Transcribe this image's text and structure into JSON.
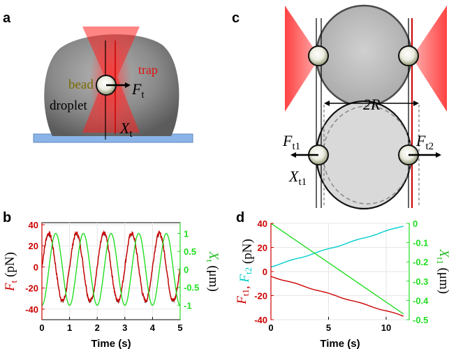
{
  "panel_labels": {
    "a": "a",
    "b": "b",
    "c": "c",
    "d": "d"
  },
  "panel_a": {
    "bead": "bead",
    "trap": "trap",
    "droplet": "droplet",
    "force_sym": "F",
    "force_sub": "t",
    "pos_sym": "X",
    "pos_sub": "t"
  },
  "panel_c": {
    "radius": "2R",
    "f1_sym": "F",
    "f1_sub": "t1",
    "f2_sym": "F",
    "f2_sub": "t2",
    "x_sym": "X",
    "x_sub": "t1"
  },
  "colors": {
    "force": "#cc0000",
    "position": "#22dd22",
    "force2": "#00cccc",
    "trap": "#ff2020",
    "substrate": "#8ab4e8"
  },
  "chart_data": [
    {
      "type": "line",
      "panel": "b",
      "xlabel": "Time (s)",
      "ylabel_left": {
        "sym": "F",
        "sub": "t",
        "unit": " (pN)"
      },
      "ylabel_right": {
        "sym": "X",
        "sub": "t",
        "unit": " (μm)"
      },
      "xlim": [
        0,
        5
      ],
      "ylim_left": [
        -50,
        42
      ],
      "ylim_right": [
        -1.4,
        1.3
      ],
      "xticks": [
        0,
        1,
        2,
        3,
        4,
        5
      ],
      "yticks_left": [
        -40,
        -20,
        0,
        20,
        40
      ],
      "yticks_right": [
        -1,
        -0.5,
        0,
        0.5,
        1
      ],
      "ytick_labels_right": [
        "-1",
        "-0.5",
        "0",
        "0.5",
        "1"
      ],
      "grid": true,
      "series": [
        {
          "axis": "left",
          "color": "#cc0000",
          "amplitude": 32,
          "frequency": 1.0,
          "phase_s": 0.0,
          "noise": true
        },
        {
          "axis": "right",
          "color": "#22dd22",
          "amplitude": 1.0,
          "frequency": 1.0,
          "phase_s": 0.25
        }
      ]
    },
    {
      "type": "line",
      "panel": "d",
      "xlabel": "Time (s)",
      "ylabel_left": {
        "parts": [
          {
            "sym": "F",
            "sub": "t1",
            "color": "#cc0000"
          },
          {
            "text": ", ",
            "color": "#cc0000"
          },
          {
            "sym": "F",
            "sub": "t2",
            "color": "#00cccc"
          },
          {
            "text": " (pN)",
            "color": "#000000"
          }
        ]
      },
      "ylabel_right": {
        "sym": "X",
        "sub": "t1",
        "unit": " (μm)"
      },
      "xlim": [
        0,
        12
      ],
      "ylim_left": [
        -40,
        40
      ],
      "ylim_right": [
        -0.5,
        0
      ],
      "xticks": [
        0,
        5,
        10
      ],
      "yticks_left": [
        -40,
        -20,
        0,
        20,
        40
      ],
      "yticks_right": [
        0,
        -0.1,
        -0.2,
        -0.3,
        -0.4,
        -0.5
      ],
      "ytick_labels_right": [
        "0",
        "-0.1",
        "-0.2",
        "-0.3",
        "-0.4",
        "-0.5"
      ],
      "grid": true,
      "series": [
        {
          "axis": "left",
          "color": "#cc0000",
          "x": [
            0,
            11.5
          ],
          "y": [
            -4,
            -37
          ]
        },
        {
          "axis": "left",
          "color": "#00cccc",
          "x": [
            0,
            11.5
          ],
          "y": [
            4,
            38
          ]
        },
        {
          "axis": "right",
          "color": "#22dd22",
          "x": [
            0,
            11.5
          ],
          "y": [
            0,
            -0.47
          ]
        }
      ]
    }
  ]
}
